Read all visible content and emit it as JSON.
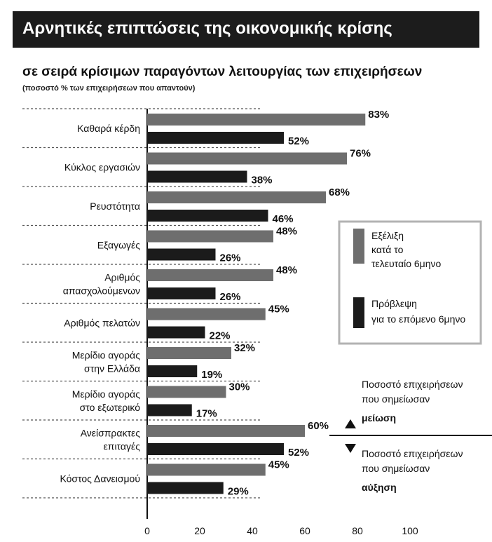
{
  "title": "Αρνητικές επιπτώσεις της οικονομικής κρίσης",
  "subtitle": "σε σειρά κρίσιμων παραγόντων λειτουργίας των επιχειρήσεων",
  "note": "(ποσοστό % των επιχειρήσεων που απαντούν)",
  "colors": {
    "past": "#6e6e6e",
    "future": "#1b1b1b",
    "title_bg": "#1c1c1c"
  },
  "chart_data": {
    "type": "bar",
    "orientation": "horizontal",
    "categories": [
      [
        "Καθαρά κέρδη"
      ],
      [
        "Κύκλος εργασιών"
      ],
      [
        "Ρευστότητα"
      ],
      [
        "Εξαγωγές"
      ],
      [
        "Αριθμός",
        "απασχολούμενων"
      ],
      [
        "Αριθμός πελατών"
      ],
      [
        "Μερίδιο αγοράς",
        "στην Ελλάδα"
      ],
      [
        "Μερίδιο αγοράς",
        "στο εξωτερικό"
      ],
      [
        "Ανείσπρακτες",
        "επιταγές"
      ],
      [
        "Κόστος Δανεισμού"
      ]
    ],
    "series": [
      {
        "name": "Εξέλιξη κατά το τελευταίο 6μηνο",
        "values": [
          83,
          76,
          68,
          48,
          48,
          45,
          32,
          30,
          60,
          45
        ]
      },
      {
        "name": "Πρόβλεψη για το επόμενο 6μηνο",
        "values": [
          52,
          38,
          46,
          26,
          26,
          22,
          19,
          17,
          52,
          29
        ]
      }
    ],
    "x_ticks": [
      0,
      20,
      40,
      60,
      80,
      100
    ],
    "xlim": [
      0,
      100
    ],
    "value_suffix": "%",
    "legend": [
      {
        "lines": [
          "Εξέλιξη",
          "κατά το",
          "τελευταίο 6μηνο"
        ]
      },
      {
        "lines": [
          "Πρόβλεψη",
          "για το επόμενο 6μηνο"
        ]
      }
    ],
    "annotations": {
      "decrease": {
        "lines": [
          "Ποσοστό επιχειρήσεων",
          "που σημείωσαν"
        ],
        "bold": "μείωση"
      },
      "increase": {
        "lines": [
          "Ποσοστό επιχειρήσεων",
          "που σημείωσαν"
        ],
        "bold": "αύξηση"
      }
    }
  }
}
